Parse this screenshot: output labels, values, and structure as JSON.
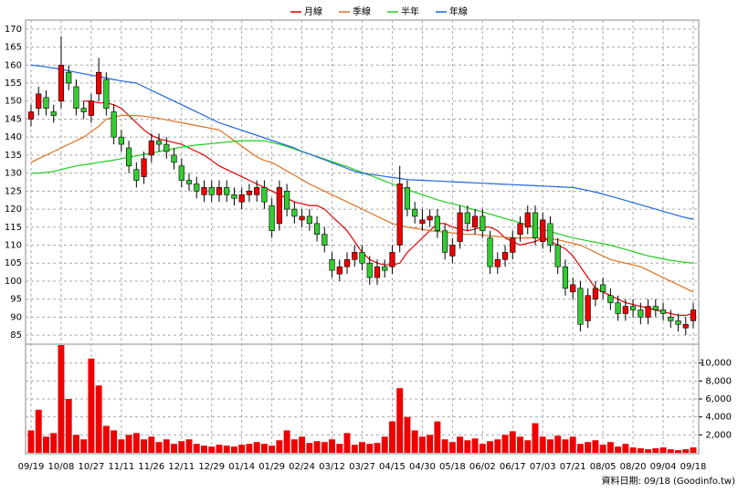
{
  "chart_data": {
    "type": "candlestick",
    "categories": [
      "09/19",
      null,
      null,
      null,
      "10/08",
      null,
      null,
      null,
      "10/27",
      null,
      null,
      null,
      "11/11",
      null,
      null,
      null,
      "11/26",
      null,
      null,
      null,
      "12/11",
      null,
      null,
      null,
      "12/29",
      null,
      null,
      null,
      "01/14",
      null,
      null,
      null,
      "01/29",
      null,
      null,
      null,
      "02/24",
      null,
      null,
      null,
      "03/12",
      null,
      null,
      null,
      "03/27",
      null,
      null,
      null,
      "04/15",
      null,
      null,
      null,
      "04/30",
      null,
      null,
      null,
      "05/18",
      null,
      null,
      null,
      "06/02",
      null,
      null,
      null,
      "06/17",
      null,
      null,
      null,
      "07/03",
      null,
      null,
      null,
      "07/21",
      null,
      null,
      null,
      "08/05",
      null,
      null,
      null,
      "08/20",
      null,
      null,
      null,
      "09/04",
      null,
      null,
      null,
      "09/18"
    ],
    "open": [
      145,
      148,
      151,
      147,
      150,
      158,
      154,
      148,
      146,
      152,
      156,
      147,
      140,
      137,
      131,
      129,
      135,
      139,
      138,
      135,
      132,
      128,
      127,
      124,
      126,
      124,
      126,
      124,
      122,
      124,
      124,
      126,
      121,
      116,
      125,
      120,
      117,
      118,
      116,
      113,
      106,
      102,
      104,
      106,
      108,
      105,
      101,
      104,
      104,
      110,
      126,
      120,
      116,
      117,
      118,
      114,
      107,
      111,
      119,
      115,
      118,
      112,
      104,
      106,
      108,
      113,
      115,
      119,
      111,
      116,
      110,
      104,
      97,
      98,
      89,
      95,
      99,
      96,
      94,
      91,
      93,
      92,
      90,
      93,
      92,
      90,
      89,
      87,
      89
    ],
    "high": [
      149,
      154,
      153,
      149,
      168,
      160,
      156,
      150,
      152,
      162,
      158,
      149,
      142,
      139,
      133,
      136,
      141,
      141,
      140,
      137,
      134,
      130,
      129,
      128,
      128,
      128,
      128,
      126,
      126,
      127,
      128,
      128,
      123,
      128,
      127,
      122,
      120,
      120,
      118,
      115,
      108,
      106,
      108,
      110,
      110,
      107,
      106,
      106,
      110,
      132,
      128,
      122,
      120,
      120,
      120,
      116,
      112,
      121,
      121,
      120,
      120,
      114,
      108,
      110,
      114,
      118,
      121,
      121,
      119,
      118,
      112,
      106,
      101,
      100,
      98,
      100,
      101,
      98,
      96,
      95,
      95,
      94,
      95,
      95,
      94,
      92,
      91,
      90,
      94
    ],
    "low": [
      143,
      146,
      146,
      144,
      148,
      153,
      146,
      145,
      144,
      150,
      146,
      138,
      136,
      130,
      126,
      127,
      133,
      136,
      134,
      131,
      126,
      125,
      123,
      122,
      122,
      122,
      122,
      121,
      120,
      122,
      122,
      120,
      112,
      114,
      118,
      116,
      115,
      114,
      111,
      108,
      101,
      100,
      102,
      104,
      103,
      99,
      99,
      101,
      102,
      108,
      118,
      116,
      114,
      115,
      112,
      106,
      105,
      109,
      114,
      113,
      112,
      102,
      102,
      104,
      106,
      111,
      113,
      110,
      109,
      108,
      102,
      96,
      95,
      86,
      87,
      93,
      95,
      92,
      89,
      89,
      90,
      88,
      88,
      90,
      89,
      87,
      86,
      85,
      87
    ],
    "close": [
      147,
      152,
      148,
      146,
      160,
      155,
      148,
      147,
      150,
      158,
      148,
      140,
      138,
      132,
      128,
      134,
      139,
      138,
      136,
      133,
      128,
      127,
      125,
      126,
      124,
      126,
      124,
      123,
      124,
      125,
      126,
      122,
      114,
      126,
      120,
      118,
      118,
      116,
      113,
      110,
      103,
      104,
      106,
      108,
      105,
      101,
      104,
      103,
      108,
      127,
      120,
      118,
      117,
      118,
      114,
      108,
      110,
      119,
      116,
      118,
      114,
      104,
      106,
      108,
      112,
      116,
      119,
      112,
      117,
      110,
      104,
      98,
      99,
      88,
      96,
      98,
      97,
      94,
      91,
      93,
      92,
      90,
      93,
      92,
      91,
      89,
      88,
      88,
      92
    ],
    "volume": [
      2500,
      4800,
      1800,
      2200,
      12000,
      6000,
      2000,
      1500,
      10500,
      7500,
      3000,
      2500,
      1500,
      2000,
      2200,
      1500,
      1800,
      1200,
      1500,
      1000,
      1300,
      1500,
      1000,
      800,
      700,
      900,
      800,
      700,
      900,
      1000,
      1200,
      1000,
      800,
      1400,
      2500,
      1500,
      1800,
      1100,
      1300,
      1200,
      1500,
      1000,
      2200,
      900,
      1200,
      1000,
      1100,
      1800,
      3500,
      7200,
      4000,
      2500,
      1800,
      2000,
      3500,
      1500,
      1200,
      1800,
      1400,
      1600,
      1000,
      1300,
      1500,
      2000,
      2400,
      1800,
      1400,
      3300,
      1800,
      1500,
      1900,
      1500,
      1800,
      1000,
      1200,
      1400,
      900,
      1200,
      700,
      1000,
      600,
      500,
      400,
      500,
      600,
      400,
      300,
      400,
      600
    ],
    "up_color": "#ee0000",
    "down_color": "#33cc33",
    "volume_color": "#ee0000",
    "series": [
      {
        "name": "月線",
        "color": "#dd0000",
        "values": [
          null,
          null,
          null,
          null,
          null,
          null,
          null,
          150,
          150,
          149.5,
          149.5,
          149,
          148,
          146,
          144,
          142,
          140.5,
          139.5,
          139,
          138.5,
          138,
          137,
          136,
          135,
          133.5,
          132,
          131,
          130,
          129,
          128,
          127,
          126,
          125,
          124,
          123,
          122,
          121.5,
          121,
          121,
          120,
          118,
          116,
          114,
          111,
          108,
          106,
          105,
          104.5,
          104.5,
          105,
          108,
          110,
          112,
          114,
          116,
          116,
          115,
          114.5,
          114,
          114.5,
          115,
          115,
          114,
          112,
          111,
          110,
          110.5,
          111,
          112,
          111,
          110,
          109,
          107,
          104,
          101,
          98,
          97,
          96,
          95,
          94,
          93.5,
          93,
          92.5,
          92,
          91.5,
          91,
          90.5,
          90.5,
          91
        ]
      },
      {
        "name": "季線",
        "color": "#e07020",
        "values": [
          133,
          134,
          135,
          136,
          137,
          138,
          139,
          140,
          141.5,
          143,
          145,
          145.5,
          146,
          146,
          146,
          145.8,
          145.5,
          145.2,
          144.8,
          144.4,
          144,
          143.6,
          143.2,
          142.8,
          142.4,
          142,
          140.5,
          139,
          137.5,
          136,
          134.5,
          133.5,
          133,
          131.8,
          130.6,
          129.4,
          128.2,
          127,
          126,
          125,
          124,
          123,
          122,
          121,
          120,
          119,
          118,
          117,
          116,
          115.5,
          115,
          114.7,
          114.4,
          114,
          113.8,
          113.6,
          113.4,
          113.2,
          113,
          113,
          112.8,
          112.6,
          112.4,
          112.2,
          112,
          112,
          112,
          112,
          112,
          111.8,
          111.5,
          111,
          110.5,
          110,
          109,
          108,
          107,
          106,
          105.5,
          105,
          104.5,
          104,
          103,
          102,
          101,
          100,
          99,
          98,
          97
        ]
      },
      {
        "name": "半年",
        "color": "#22cc22",
        "values": [
          130,
          130,
          130.2,
          130.5,
          131,
          131.5,
          132,
          132.3,
          132.6,
          133,
          133.3,
          133.6,
          134,
          134.4,
          134.8,
          135.2,
          135.6,
          136,
          136.4,
          136.8,
          137.2,
          137.5,
          137.8,
          138,
          138.2,
          138.4,
          138.6,
          138.8,
          139,
          139,
          139,
          139,
          138.5,
          138,
          137.4,
          136.7,
          136,
          135.3,
          134.6,
          133.9,
          133.2,
          132.5,
          131.8,
          131,
          130.2,
          129.4,
          128.6,
          127.8,
          127,
          126.2,
          125.4,
          124.7,
          124,
          123.3,
          122.6,
          122,
          121.5,
          121,
          120.4,
          119.8,
          119.2,
          118.6,
          118,
          117.4,
          116.8,
          116.2,
          115.6,
          115,
          114.4,
          113.8,
          113.2,
          112.6,
          112,
          111.6,
          111.2,
          110.8,
          110.4,
          110,
          109.4,
          108.8,
          108.2,
          107.6,
          107,
          106.6,
          106.2,
          105.8,
          105.5,
          105.2,
          105
        ]
      },
      {
        "name": "年線",
        "color": "#2266dd",
        "values": [
          160,
          159.8,
          159.5,
          159.2,
          158.8,
          158.4,
          158,
          157.6,
          157.2,
          156.8,
          156.4,
          156,
          155.6,
          155.3,
          155,
          154,
          153,
          152,
          151,
          150,
          149,
          148,
          147,
          146,
          145,
          144,
          143.3,
          142.6,
          141.9,
          141.2,
          140.5,
          139.8,
          139.1,
          138.4,
          137.7,
          137,
          136,
          135.3,
          134.5,
          133.7,
          132.9,
          132.1,
          131.3,
          130.5,
          130,
          129.7,
          129.4,
          129.1,
          128.8,
          128.5,
          128.2,
          128.1,
          128,
          127.9,
          127.8,
          127.7,
          127.6,
          127.5,
          127.4,
          127.3,
          127.2,
          127.1,
          127,
          126.9,
          126.8,
          126.7,
          126.6,
          126.5,
          126.4,
          126.3,
          126.2,
          126.1,
          126,
          125.6,
          125.2,
          124.7,
          124.2,
          123.6,
          123,
          122.4,
          121.8,
          121.2,
          120.6,
          120,
          119.4,
          118.8,
          118.2,
          117.6,
          117.2
        ]
      }
    ],
    "ylim": [
      83,
      172.5
    ],
    "yticks": [
      85,
      90,
      95,
      100,
      105,
      110,
      115,
      120,
      125,
      130,
      135,
      140,
      145,
      150,
      155,
      160,
      165,
      170
    ],
    "y2lim": [
      0,
      12000
    ],
    "y2ticks": [
      {
        "value": 2000,
        "label": "2,000"
      },
      {
        "value": 4000,
        "label": "4,000"
      },
      {
        "value": 6000,
        "label": "6,000"
      },
      {
        "value": 8000,
        "label": "8,000"
      },
      {
        "value": 10000,
        "label": "10,000"
      }
    ],
    "grid": true,
    "legend": "top",
    "source": "資料日期: 09/18  (Goodinfo.tw)"
  }
}
